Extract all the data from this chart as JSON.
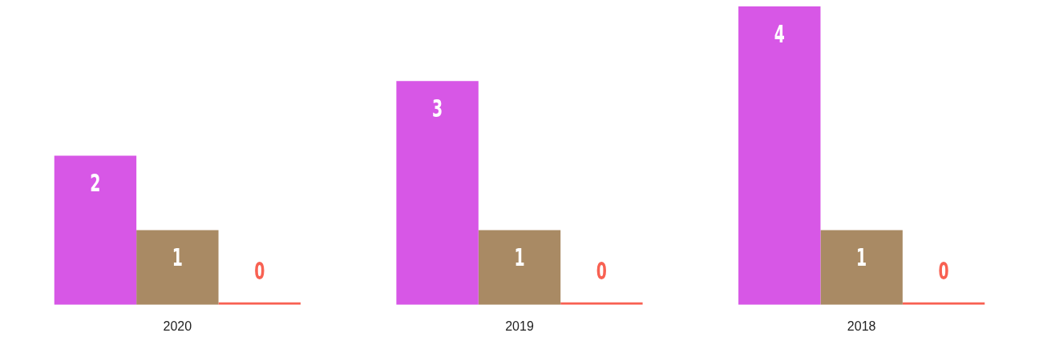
{
  "chart_data": {
    "type": "bar",
    "categories": [
      "2020",
      "2019",
      "2018"
    ],
    "series": [
      {
        "color": "#d757e6",
        "values": [
          2,
          3,
          4
        ]
      },
      {
        "color": "#a98a64",
        "values": [
          1,
          1,
          1
        ]
      },
      {
        "color": "#f86152",
        "values": [
          0,
          0,
          0
        ]
      }
    ],
    "data_labels": true,
    "grid": false,
    "legend": false
  }
}
